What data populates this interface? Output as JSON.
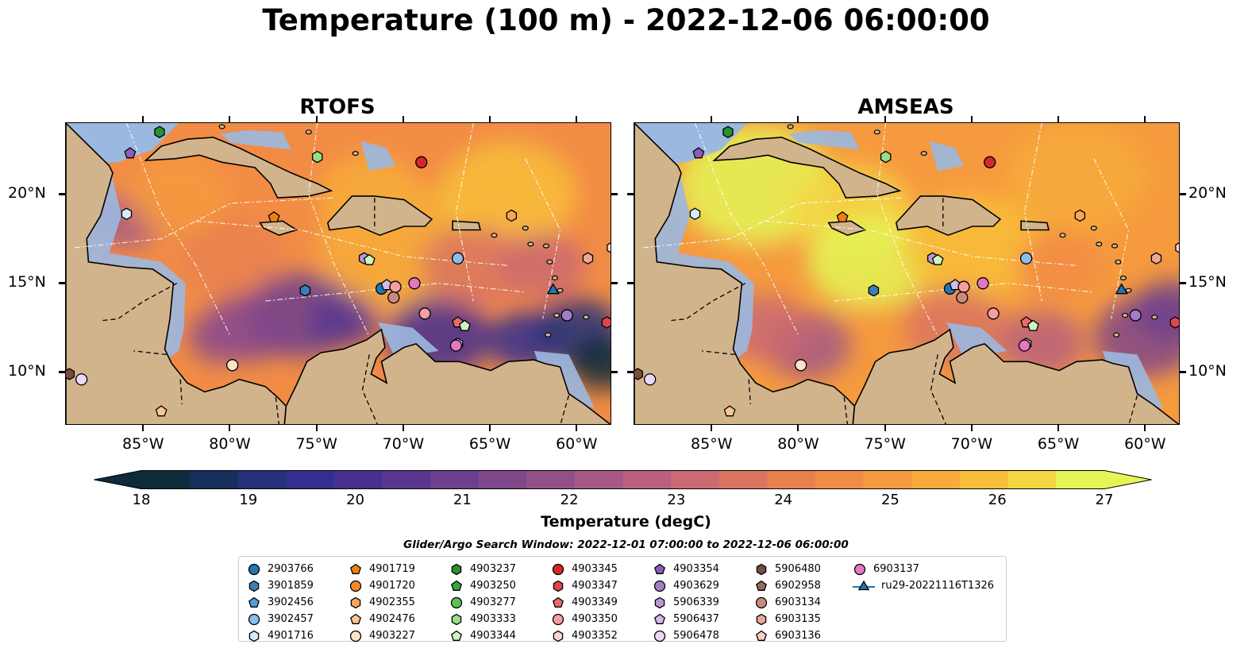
{
  "title": "Temperature (100 m) - 2022-12-06 06:00:00",
  "panels": [
    {
      "title": "RTOFS",
      "name": "rtofs"
    },
    {
      "title": "AMSEAS",
      "name": "amseas"
    }
  ],
  "map": {
    "lon_range": [
      -89.5,
      -58.0
    ],
    "lat_range": [
      7.0,
      24.0
    ],
    "lon_ticks": [
      {
        "value": -85,
        "label": "85°W"
      },
      {
        "value": -80,
        "label": "80°W"
      },
      {
        "value": -75,
        "label": "75°W"
      },
      {
        "value": -70,
        "label": "70°W"
      },
      {
        "value": -65,
        "label": "65°W"
      },
      {
        "value": -60,
        "label": "60°W"
      }
    ],
    "lat_ticks": [
      {
        "value": 10,
        "label": "10°N"
      },
      {
        "value": 15,
        "label": "15°N"
      },
      {
        "value": 20,
        "label": "20°N"
      }
    ],
    "colors": {
      "land": "#d2b48c",
      "shelf": "#9bb8e0",
      "deep_cold": "#0a2030"
    }
  },
  "colorbar": {
    "label": "Temperature (degC)",
    "min": 18,
    "max": 27,
    "ticks": [
      {
        "value": 18,
        "label": "18"
      },
      {
        "value": 19,
        "label": "19"
      },
      {
        "value": 20,
        "label": "20"
      },
      {
        "value": 21,
        "label": "21"
      },
      {
        "value": 22,
        "label": "22"
      },
      {
        "value": 23,
        "label": "23"
      },
      {
        "value": 24,
        "label": "24"
      },
      {
        "value": 25,
        "label": "25"
      },
      {
        "value": 26,
        "label": "26"
      },
      {
        "value": 27,
        "label": "27"
      }
    ],
    "colors": [
      "#0d2b3a",
      "#172f5a",
      "#23327a",
      "#342f8e",
      "#47308f",
      "#5a378f",
      "#6d3f8d",
      "#80478a",
      "#935088",
      "#a65984",
      "#b9617c",
      "#cb6a70",
      "#db7460",
      "#e98050",
      "#f28c45",
      "#f59a3e",
      "#f7ab3a",
      "#f8be3a",
      "#f4d643",
      "#e5f556"
    ]
  },
  "search_window": "Glider/Argo Search Window: 2022-12-01 07:00:00 to 2022-12-06 06:00:00",
  "legend": [
    {
      "label": "2903766",
      "marker": "circle",
      "color": "#1f77b4"
    },
    {
      "label": "3901859",
      "marker": "hexagon",
      "color": "#3a7fb8"
    },
    {
      "label": "3902456",
      "marker": "pentagon",
      "color": "#5a9bd5"
    },
    {
      "label": "3902457",
      "marker": "circle",
      "color": "#8cbde6"
    },
    {
      "label": "4901716",
      "marker": "hexagon",
      "color": "#d6ecfa"
    },
    {
      "label": "4901719",
      "marker": "pentagon",
      "color": "#f07f12"
    },
    {
      "label": "4901720",
      "marker": "circle",
      "color": "#f58a2a"
    },
    {
      "label": "4902355",
      "marker": "hexagon",
      "color": "#f9a45c"
    },
    {
      "label": "4902476",
      "marker": "pentagon",
      "color": "#fcc48f"
    },
    {
      "label": "4903227",
      "marker": "circle",
      "color": "#fde3c8"
    },
    {
      "label": "4903237",
      "marker": "hexagon",
      "color": "#2a9132"
    },
    {
      "label": "4903250",
      "marker": "pentagon",
      "color": "#3aa63e"
    },
    {
      "label": "4903277",
      "marker": "circle",
      "color": "#5cc157"
    },
    {
      "label": "4903333",
      "marker": "hexagon",
      "color": "#97df85"
    },
    {
      "label": "4903344",
      "marker": "pentagon",
      "color": "#cdf5c0"
    },
    {
      "label": "4903345",
      "marker": "circle",
      "color": "#d62728"
    },
    {
      "label": "4903347",
      "marker": "hexagon",
      "color": "#e0474a"
    },
    {
      "label": "4903349",
      "marker": "pentagon",
      "color": "#ea6b6b"
    },
    {
      "label": "4903350",
      "marker": "circle",
      "color": "#f4a0a0"
    },
    {
      "label": "4903352",
      "marker": "hexagon",
      "color": "#fbd3d0"
    },
    {
      "label": "4903354",
      "marker": "pentagon",
      "color": "#8e5cb8"
    },
    {
      "label": "4903629",
      "marker": "circle",
      "color": "#a47ec9"
    },
    {
      "label": "5906339",
      "marker": "hexagon",
      "color": "#b999d9"
    },
    {
      "label": "5906437",
      "marker": "pentagon",
      "color": "#d2bbeb"
    },
    {
      "label": "5906478",
      "marker": "circle",
      "color": "#ead7f8"
    },
    {
      "label": "5906480",
      "marker": "hexagon",
      "color": "#7d4a3e"
    },
    {
      "label": "6902958",
      "marker": "pentagon",
      "color": "#98665a"
    },
    {
      "label": "6903134",
      "marker": "circle",
      "color": "#c88a80"
    },
    {
      "label": "6903135",
      "marker": "hexagon",
      "color": "#eba896"
    },
    {
      "label": "6903136",
      "marker": "pentagon",
      "color": "#f7cfc3"
    },
    {
      "label": "6903137",
      "marker": "circle",
      "color": "#e377c2"
    },
    {
      "label": "ru29-20221116T1326",
      "marker": "triangle-line",
      "color": "#1f77b4"
    }
  ],
  "floats": [
    {
      "id": "4903237",
      "lon": -84.1,
      "lat": 23.5
    },
    {
      "id": "4903354",
      "lon": -85.8,
      "lat": 22.3
    },
    {
      "id": "4903333",
      "lon": -75.0,
      "lat": 22.1
    },
    {
      "id": "4903345",
      "lon": -69.0,
      "lat": 21.8
    },
    {
      "id": "4901716",
      "lon": -86.0,
      "lat": 18.9
    },
    {
      "id": "4901719",
      "lon": -77.5,
      "lat": 18.7
    },
    {
      "id": "4902355",
      "lon": -63.8,
      "lat": 18.8
    },
    {
      "id": "5906339",
      "lon": -72.3,
      "lat": 16.4
    },
    {
      "id": "4903344",
      "lon": -72.0,
      "lat": 16.3
    },
    {
      "id": "3902457",
      "lon": -66.9,
      "lat": 16.4
    },
    {
      "id": "6903135",
      "lon": -59.4,
      "lat": 16.4
    },
    {
      "id": "4903352",
      "lon": -58.0,
      "lat": 17.0
    },
    {
      "id": "3901859",
      "lon": -75.7,
      "lat": 14.6
    },
    {
      "id": "2903766",
      "lon": -71.3,
      "lat": 14.7
    },
    {
      "id": "5906437",
      "lon": -71.0,
      "lat": 14.9
    },
    {
      "id": "4903350",
      "lon": -70.5,
      "lat": 14.8
    },
    {
      "id": "6903134",
      "lon": -70.6,
      "lat": 14.2
    },
    {
      "id": "6903137",
      "lon": -69.4,
      "lat": 15.0
    },
    {
      "id": "4903350",
      "lon": -68.8,
      "lat": 13.3
    },
    {
      "id": "4903349",
      "lon": -66.9,
      "lat": 12.8
    },
    {
      "id": "4903344",
      "lon": -66.5,
      "lat": 12.6
    },
    {
      "id": "4903352",
      "lon": -66.9,
      "lat": 11.6
    },
    {
      "id": "6903137",
      "lon": -67.0,
      "lat": 11.5
    },
    {
      "id": "4903629",
      "lon": -60.6,
      "lat": 13.2
    },
    {
      "id": "4903347",
      "lon": -58.3,
      "lat": 12.8
    },
    {
      "id": "4903227",
      "lon": -79.9,
      "lat": 10.4
    },
    {
      "id": "5906480",
      "lon": -89.3,
      "lat": 9.9
    },
    {
      "id": "5906478",
      "lon": -88.6,
      "lat": 9.6
    },
    {
      "id": "4902476",
      "lon": -84.0,
      "lat": 7.8
    }
  ],
  "glider": {
    "id": "ru29-20221116T1326",
    "lon": -61.4,
    "lat": 14.6
  }
}
